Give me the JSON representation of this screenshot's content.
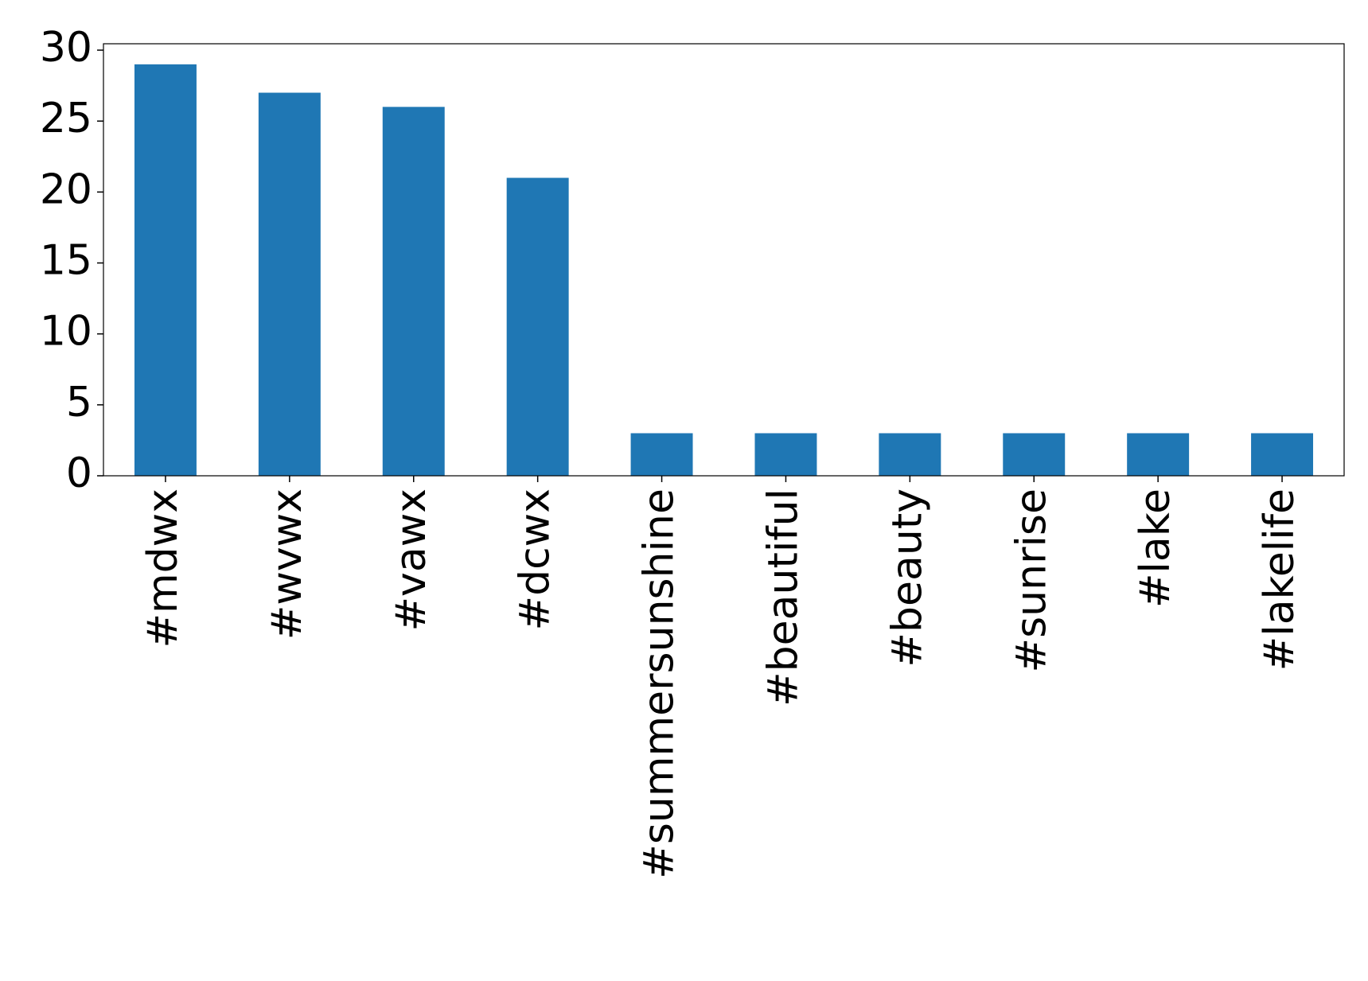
{
  "chart_data": {
    "type": "bar",
    "categories": [
      "#mdwx",
      "#wvwx",
      "#vawx",
      "#dcwx",
      "#summersunshine",
      "#beautiful",
      "#beauty",
      "#sunrise",
      "#lake",
      "#lakelife"
    ],
    "values": [
      29,
      27,
      26,
      21,
      3,
      3,
      3,
      3,
      3,
      3
    ],
    "color": "#1f77b4",
    "ylim": [
      0,
      30.45
    ],
    "yticks": [
      0,
      5,
      10,
      15,
      20,
      25,
      30
    ]
  }
}
